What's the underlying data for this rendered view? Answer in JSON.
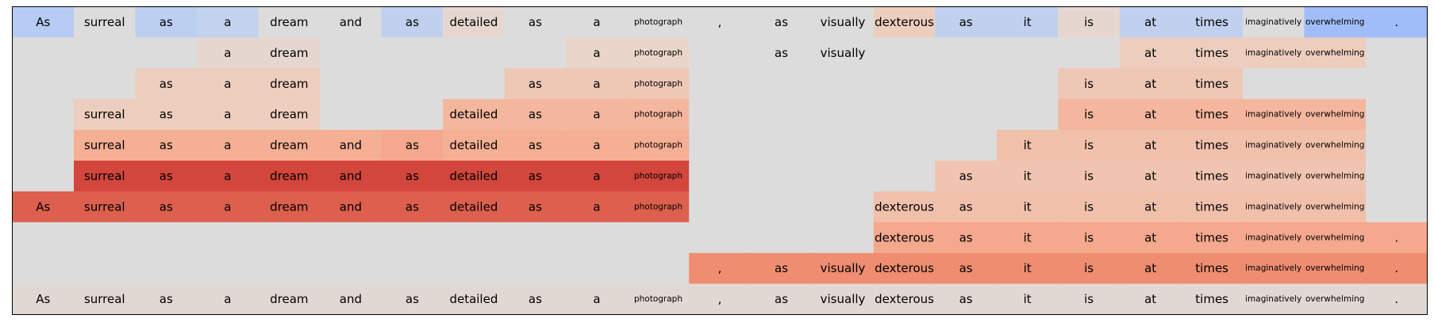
{
  "chart_data": {
    "type": "heatmap",
    "tokens": [
      "As",
      "surreal",
      "as",
      "a",
      "dream",
      "and",
      "as",
      "detailed",
      "as",
      "a",
      "photograph",
      ",",
      "as",
      "visually",
      "dexterous",
      "as",
      "it",
      "is",
      "at",
      "times",
      "imaginatively",
      "overwhelming",
      "."
    ],
    "rows": [
      {
        "values": [
          -0.3,
          0.0,
          -0.25,
          -0.2,
          0.0,
          0.0,
          -0.22,
          0.08,
          0.0,
          0.0,
          0.0,
          0.0,
          0.0,
          0.0,
          0.18,
          -0.22,
          -0.22,
          0.08,
          -0.22,
          -0.22,
          0.0,
          -0.45,
          -0.45
        ],
        "shown": [
          true,
          true,
          true,
          true,
          true,
          true,
          true,
          true,
          true,
          true,
          true,
          true,
          true,
          true,
          true,
          true,
          true,
          true,
          true,
          true,
          true,
          true,
          true
        ]
      },
      {
        "values": [
          0.0,
          0.0,
          0.0,
          0.08,
          0.08,
          0.0,
          0.0,
          0.0,
          0.0,
          0.12,
          0.12,
          0.0,
          0.0,
          0.0,
          0.0,
          0.0,
          0.0,
          0.0,
          0.18,
          0.18,
          0.18,
          0.18,
          0.0
        ],
        "shown": [
          false,
          false,
          false,
          true,
          true,
          false,
          false,
          false,
          false,
          true,
          true,
          false,
          true,
          true,
          false,
          false,
          false,
          false,
          true,
          true,
          true,
          true,
          false
        ]
      },
      {
        "values": [
          0.0,
          0.0,
          0.18,
          0.18,
          0.18,
          0.0,
          0.0,
          0.0,
          0.22,
          0.22,
          0.22,
          0.0,
          0.0,
          0.0,
          0.0,
          0.0,
          0.0,
          0.22,
          0.22,
          0.22,
          0.0,
          0.0,
          0.0
        ],
        "shown": [
          false,
          false,
          true,
          true,
          true,
          false,
          false,
          false,
          true,
          true,
          true,
          false,
          false,
          false,
          false,
          false,
          false,
          true,
          true,
          true,
          false,
          false,
          false
        ]
      },
      {
        "values": [
          0.0,
          0.18,
          0.18,
          0.18,
          0.18,
          0.0,
          0.0,
          0.32,
          0.32,
          0.32,
          0.32,
          0.0,
          0.0,
          0.0,
          0.0,
          0.0,
          0.0,
          0.32,
          0.32,
          0.32,
          0.32,
          0.32,
          0.0
        ],
        "shown": [
          false,
          true,
          true,
          true,
          true,
          false,
          false,
          true,
          true,
          true,
          true,
          false,
          false,
          false,
          false,
          false,
          false,
          true,
          true,
          true,
          true,
          true,
          false
        ]
      },
      {
        "values": [
          0.0,
          0.36,
          0.36,
          0.36,
          0.36,
          0.36,
          0.4,
          0.36,
          0.36,
          0.36,
          0.36,
          0.0,
          0.0,
          0.0,
          0.0,
          0.0,
          0.26,
          0.26,
          0.26,
          0.26,
          0.26,
          0.26,
          0.0
        ],
        "shown": [
          false,
          true,
          true,
          true,
          true,
          true,
          true,
          true,
          true,
          true,
          true,
          false,
          false,
          false,
          false,
          false,
          true,
          true,
          true,
          true,
          true,
          true,
          false
        ]
      },
      {
        "values": [
          0.0,
          0.85,
          0.85,
          0.85,
          0.85,
          0.85,
          0.85,
          0.85,
          0.85,
          0.85,
          0.85,
          0.0,
          0.0,
          0.0,
          0.0,
          0.24,
          0.24,
          0.24,
          0.24,
          0.24,
          0.24,
          0.24,
          0.0
        ],
        "shown": [
          false,
          true,
          true,
          true,
          true,
          true,
          true,
          true,
          true,
          true,
          true,
          false,
          false,
          false,
          false,
          true,
          true,
          true,
          true,
          true,
          true,
          true,
          false
        ]
      },
      {
        "values": [
          0.75,
          0.75,
          0.75,
          0.75,
          0.75,
          0.75,
          0.75,
          0.75,
          0.75,
          0.75,
          0.75,
          0.0,
          0.0,
          0.0,
          0.26,
          0.26,
          0.26,
          0.26,
          0.26,
          0.26,
          0.26,
          0.26,
          0.0
        ],
        "shown": [
          true,
          true,
          true,
          true,
          true,
          true,
          true,
          true,
          true,
          true,
          true,
          false,
          false,
          false,
          true,
          true,
          true,
          true,
          true,
          true,
          true,
          true,
          false
        ]
      },
      {
        "values": [
          0.0,
          0.0,
          0.0,
          0.0,
          0.0,
          0.0,
          0.0,
          0.0,
          0.0,
          0.0,
          0.0,
          0.0,
          0.0,
          0.0,
          0.4,
          0.4,
          0.4,
          0.4,
          0.4,
          0.4,
          0.4,
          0.4,
          0.4
        ],
        "shown": [
          false,
          false,
          false,
          false,
          false,
          false,
          false,
          false,
          false,
          false,
          false,
          false,
          false,
          false,
          true,
          true,
          true,
          true,
          true,
          true,
          true,
          true,
          true
        ]
      },
      {
        "values": [
          0.0,
          0.0,
          0.0,
          0.0,
          0.0,
          0.0,
          0.0,
          0.0,
          0.0,
          0.0,
          0.0,
          0.55,
          0.55,
          0.55,
          0.55,
          0.55,
          0.55,
          0.55,
          0.55,
          0.55,
          0.55,
          0.55,
          0.55
        ],
        "shown": [
          false,
          false,
          false,
          false,
          false,
          false,
          false,
          false,
          false,
          false,
          false,
          true,
          true,
          true,
          true,
          true,
          true,
          true,
          true,
          true,
          true,
          true,
          true
        ]
      },
      {
        "values": [
          0.06,
          0.06,
          0.06,
          0.06,
          0.06,
          0.06,
          0.06,
          0.06,
          0.06,
          0.06,
          0.06,
          0.06,
          0.06,
          0.06,
          0.06,
          0.06,
          0.06,
          0.06,
          0.06,
          0.06,
          0.06,
          0.06,
          0.06
        ],
        "shown": [
          true,
          true,
          true,
          true,
          true,
          true,
          true,
          true,
          true,
          true,
          true,
          true,
          true,
          true,
          true,
          true,
          true,
          true,
          true,
          true,
          true,
          true,
          true
        ]
      }
    ],
    "small_font_tokens": [
      "photograph",
      "imaginatively",
      "overwhelming"
    ],
    "colormap": "coolwarm",
    "value_range": [
      -1,
      1
    ],
    "colors": {
      "neutral": "#dcdcdc",
      "negative": "#3b4cc0",
      "positive": "#b40426",
      "border": "#000000"
    },
    "grid": false,
    "legend": "none"
  }
}
